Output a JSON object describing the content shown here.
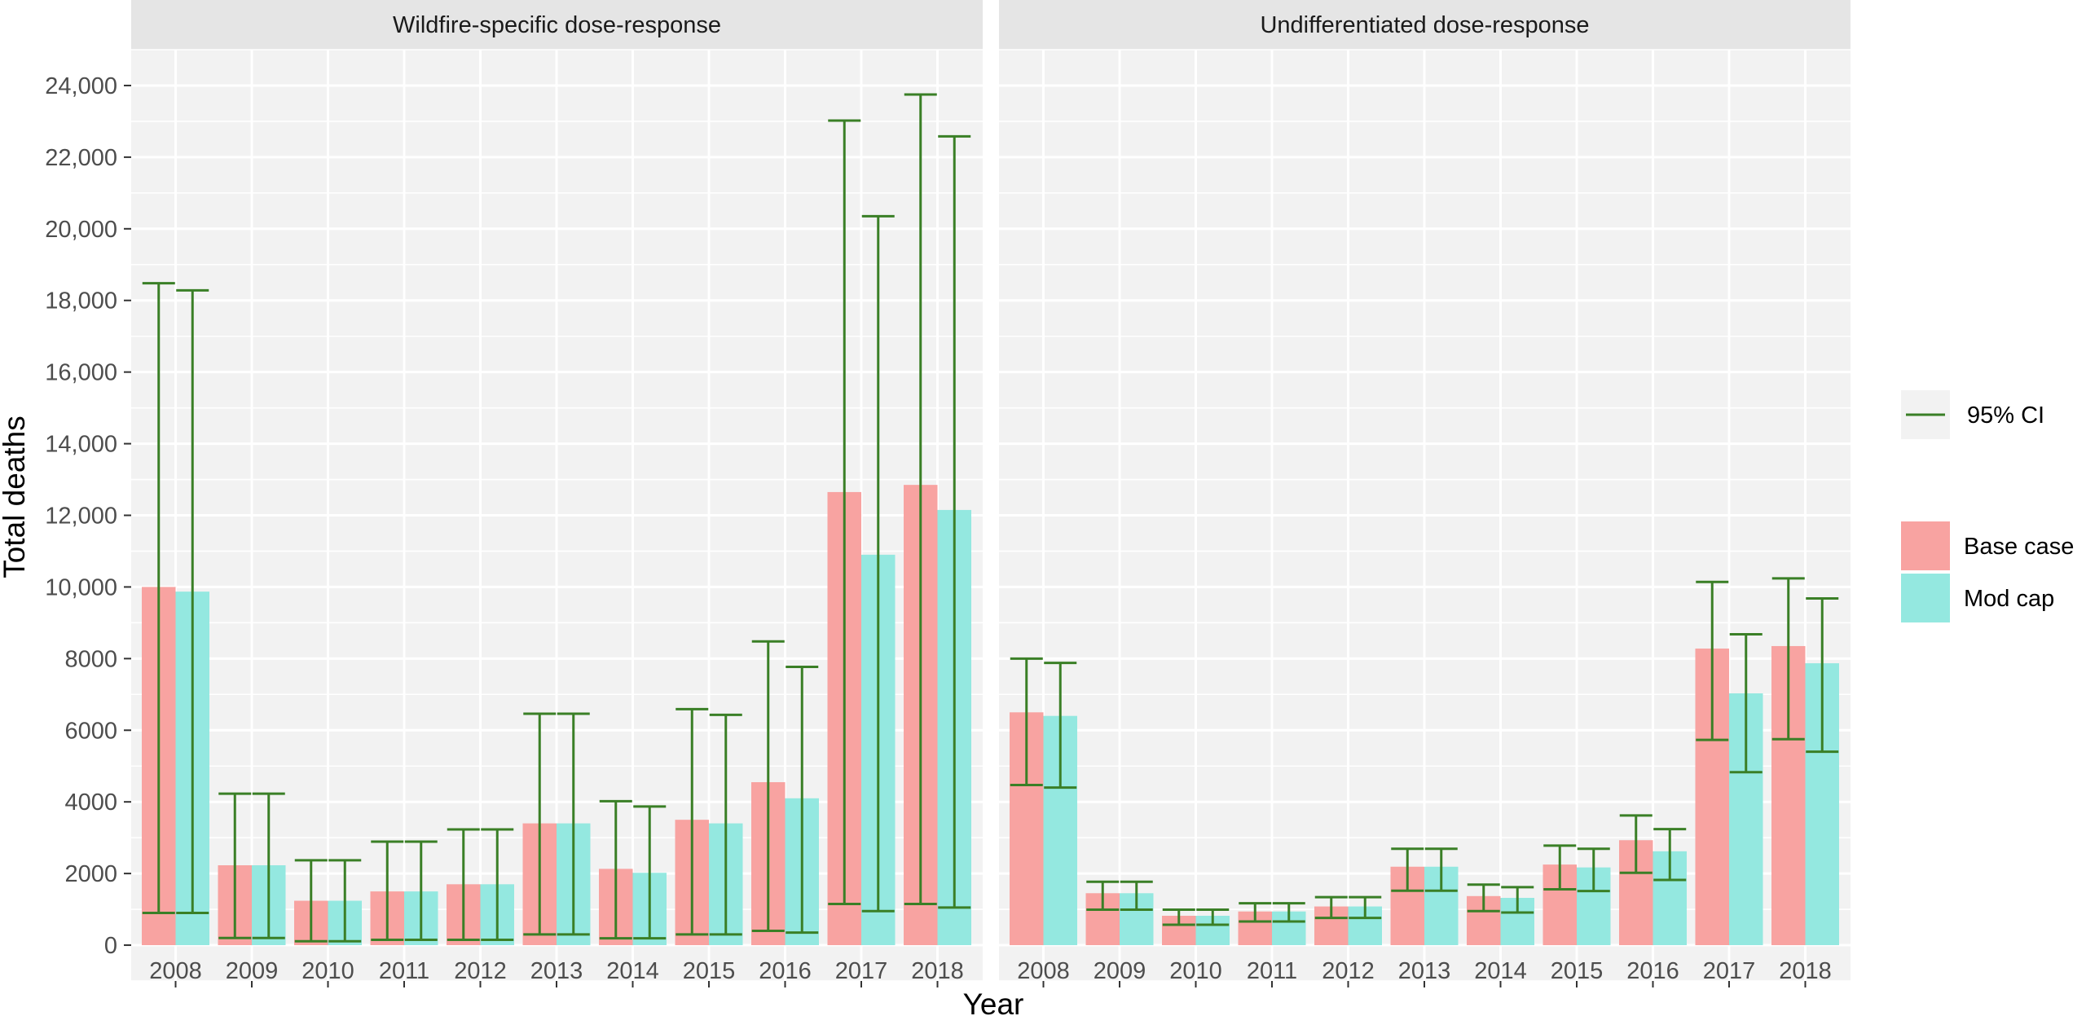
{
  "chart_data": {
    "type": "bar",
    "xlabel": "Year",
    "ylabel": "Total deaths",
    "ylim": [
      -1000,
      25000
    ],
    "y_ticks": [
      {
        "value": 0,
        "label": "0"
      },
      {
        "value": 2000,
        "label": "2000"
      },
      {
        "value": 4000,
        "label": "4000"
      },
      {
        "value": 6000,
        "label": "6000"
      },
      {
        "value": 8000,
        "label": "8000"
      },
      {
        "value": 10000,
        "label": "10,000"
      },
      {
        "value": 12000,
        "label": "12,000"
      },
      {
        "value": 14000,
        "label": "14,000"
      },
      {
        "value": 16000,
        "label": "16,000"
      },
      {
        "value": 18000,
        "label": "18,000"
      },
      {
        "value": 20000,
        "label": "20,000"
      },
      {
        "value": 22000,
        "label": "22,000"
      },
      {
        "value": 24000,
        "label": "24,000"
      }
    ],
    "grid": true,
    "legend_position": "right",
    "legend": {
      "ci_label": "95% CI",
      "series_labels": [
        "Base case",
        "Mod cap"
      ]
    },
    "colors": {
      "Base case": "#F8A3A1",
      "Mod cap": "#94E8E0",
      "ci": "#3A7F26",
      "panel_bg": "#F2F2F2",
      "strip_bg": "#E5E5E5",
      "grid": "#FFFFFF"
    },
    "categories": [
      "2008",
      "2009",
      "2010",
      "2011",
      "2012",
      "2013",
      "2014",
      "2015",
      "2016",
      "2017",
      "2018"
    ],
    "panels": [
      {
        "title": "Wildfire-specific dose-response",
        "series": [
          {
            "name": "Base case",
            "values": [
              10000,
              2230,
              1240,
              1500,
              1700,
              3400,
              2130,
              3500,
              4550,
              12650,
              12850
            ],
            "ci_low": [
              900,
              200,
              110,
              150,
              150,
              300,
              190,
              300,
              400,
              1150,
              1150
            ],
            "ci_high": [
              18480,
              4230,
              2370,
              2890,
              3230,
              6460,
              4020,
              6590,
              8480,
              23020,
              23750
            ]
          },
          {
            "name": "Mod cap",
            "values": [
              9870,
              2230,
              1240,
              1500,
              1700,
              3400,
              2020,
              3400,
              4100,
              10900,
              12150
            ],
            "ci_low": [
              900,
              200,
              110,
              150,
              150,
              300,
              190,
              300,
              350,
              950,
              1050
            ],
            "ci_high": [
              18280,
              4230,
              2370,
              2890,
              3230,
              6460,
              3870,
              6430,
              7770,
              20350,
              22580
            ]
          }
        ]
      },
      {
        "title": "Undifferentiated dose-response",
        "series": [
          {
            "name": "Base case",
            "values": [
              6500,
              1450,
              820,
              940,
              1080,
              2190,
              1370,
              2250,
              2930,
              8280,
              8350
            ],
            "ci_low": [
              4470,
              990,
              570,
              660,
              760,
              1520,
              950,
              1560,
              2020,
              5730,
              5750
            ],
            "ci_high": [
              8000,
              1770,
              990,
              1170,
              1340,
              2690,
              1690,
              2780,
              3620,
              10140,
              10240
            ]
          },
          {
            "name": "Mod cap",
            "values": [
              6400,
              1450,
              820,
              940,
              1080,
              2190,
              1320,
              2170,
              2620,
              7030,
              7870
            ],
            "ci_low": [
              4400,
              990,
              570,
              660,
              760,
              1520,
              910,
              1510,
              1820,
              4830,
              5400
            ],
            "ci_high": [
              7880,
              1770,
              990,
              1170,
              1340,
              2690,
              1620,
              2690,
              3240,
              8680,
              9680
            ]
          }
        ]
      }
    ]
  }
}
